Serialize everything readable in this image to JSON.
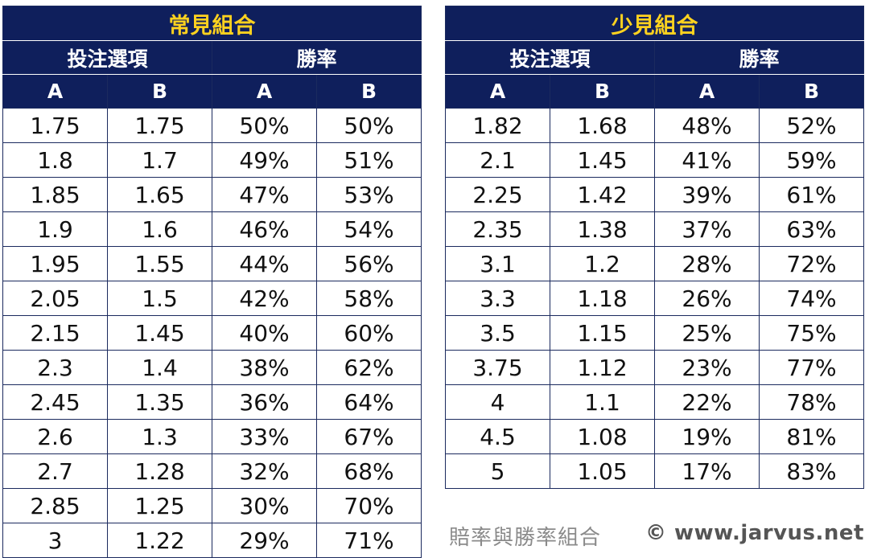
{
  "tables": [
    {
      "title": "常見組合",
      "group_headers": [
        "投注選項",
        "勝率"
      ],
      "sub_headers": [
        "A",
        "B",
        "A",
        "B"
      ],
      "rows": [
        [
          "1.75",
          "1.75",
          "50%",
          "50%"
        ],
        [
          "1.8",
          "1.7",
          "49%",
          "51%"
        ],
        [
          "1.85",
          "1.65",
          "47%",
          "53%"
        ],
        [
          "1.9",
          "1.6",
          "46%",
          "54%"
        ],
        [
          "1.95",
          "1.55",
          "44%",
          "56%"
        ],
        [
          "2.05",
          "1.5",
          "42%",
          "58%"
        ],
        [
          "2.15",
          "1.45",
          "40%",
          "60%"
        ],
        [
          "2.3",
          "1.4",
          "38%",
          "62%"
        ],
        [
          "2.45",
          "1.35",
          "36%",
          "64%"
        ],
        [
          "2.6",
          "1.3",
          "33%",
          "67%"
        ],
        [
          "2.7",
          "1.28",
          "32%",
          "68%"
        ],
        [
          "2.85",
          "1.25",
          "30%",
          "70%"
        ],
        [
          "3",
          "1.22",
          "29%",
          "71%"
        ]
      ]
    },
    {
      "title": "少見組合",
      "group_headers": [
        "投注選項",
        "勝率"
      ],
      "sub_headers": [
        "A",
        "B",
        "A",
        "B"
      ],
      "rows": [
        [
          "1.82",
          "1.68",
          "48%",
          "52%"
        ],
        [
          "2.1",
          "1.45",
          "41%",
          "59%"
        ],
        [
          "2.25",
          "1.42",
          "39%",
          "61%"
        ],
        [
          "2.35",
          "1.38",
          "37%",
          "63%"
        ],
        [
          "3.1",
          "1.2",
          "28%",
          "72%"
        ],
        [
          "3.3",
          "1.18",
          "26%",
          "74%"
        ],
        [
          "3.5",
          "1.15",
          "25%",
          "75%"
        ],
        [
          "3.75",
          "1.12",
          "23%",
          "77%"
        ],
        [
          "4",
          "1.1",
          "22%",
          "78%"
        ],
        [
          "4.5",
          "1.08",
          "19%",
          "81%"
        ],
        [
          "5",
          "1.05",
          "17%",
          "83%"
        ]
      ]
    }
  ],
  "caption": {
    "title": "賠率與勝率組合",
    "credit": "© www.jarvus.net"
  },
  "colors": {
    "header_bg": "#0f1f5c",
    "title_text": "#ffd21f",
    "header_text": "#ffffff",
    "cell_text": "#111111"
  }
}
